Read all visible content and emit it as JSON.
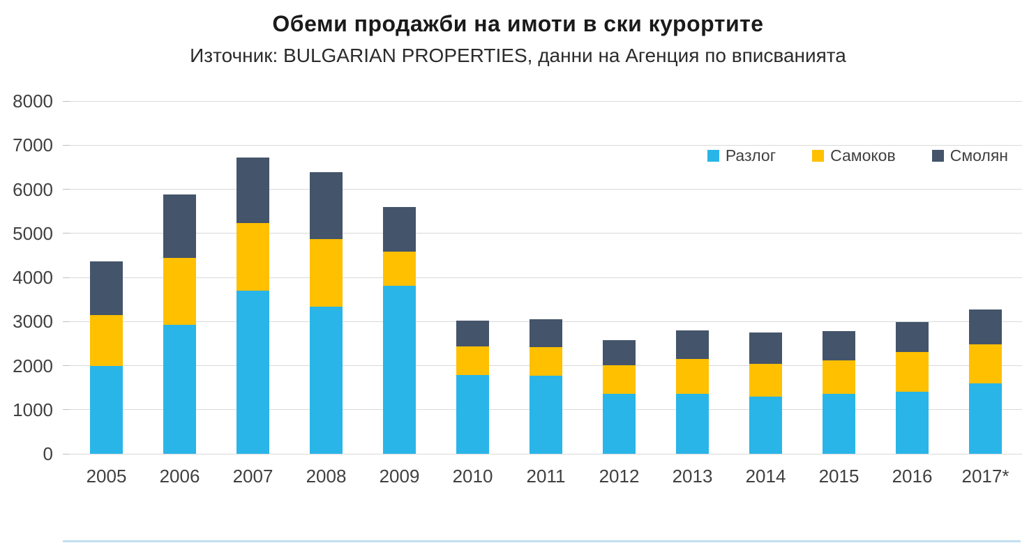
{
  "chart_data": {
    "type": "bar",
    "stacked": true,
    "title": "Обеми продажби на имоти в ски курортите",
    "subtitle": "Източник: BULGARIAN PROPERTIES, данни на Агенция по вписванията",
    "categories": [
      "2005",
      "2006",
      "2007",
      "2008",
      "2009",
      "2010",
      "2011",
      "2012",
      "2013",
      "2014",
      "2015",
      "2016",
      "2017*"
    ],
    "series": [
      {
        "name": "Разлог",
        "color": "#29B5E8",
        "values": [
          2000,
          2930,
          3700,
          3330,
          3810,
          1790,
          1770,
          1360,
          1360,
          1300,
          1360,
          1410,
          1600
        ]
      },
      {
        "name": "Самоков",
        "color": "#FFC000",
        "values": [
          1150,
          1510,
          1530,
          1540,
          770,
          650,
          650,
          650,
          790,
          740,
          760,
          900,
          880
        ]
      },
      {
        "name": "Смолян",
        "color": "#44546A",
        "values": [
          1220,
          1440,
          1490,
          1520,
          1020,
          580,
          630,
          570,
          650,
          710,
          660,
          680,
          790
        ]
      }
    ],
    "ylim": [
      0,
      8000
    ],
    "ytick_step": 1000,
    "ytick_labels": [
      "0",
      "1000",
      "2000",
      "3000",
      "4000",
      "5000",
      "6000",
      "7000",
      "8000"
    ],
    "grid": true,
    "legend_position": "top-right",
    "gridline_color": "#D9D9D9",
    "axis_text_color": "#404040"
  }
}
